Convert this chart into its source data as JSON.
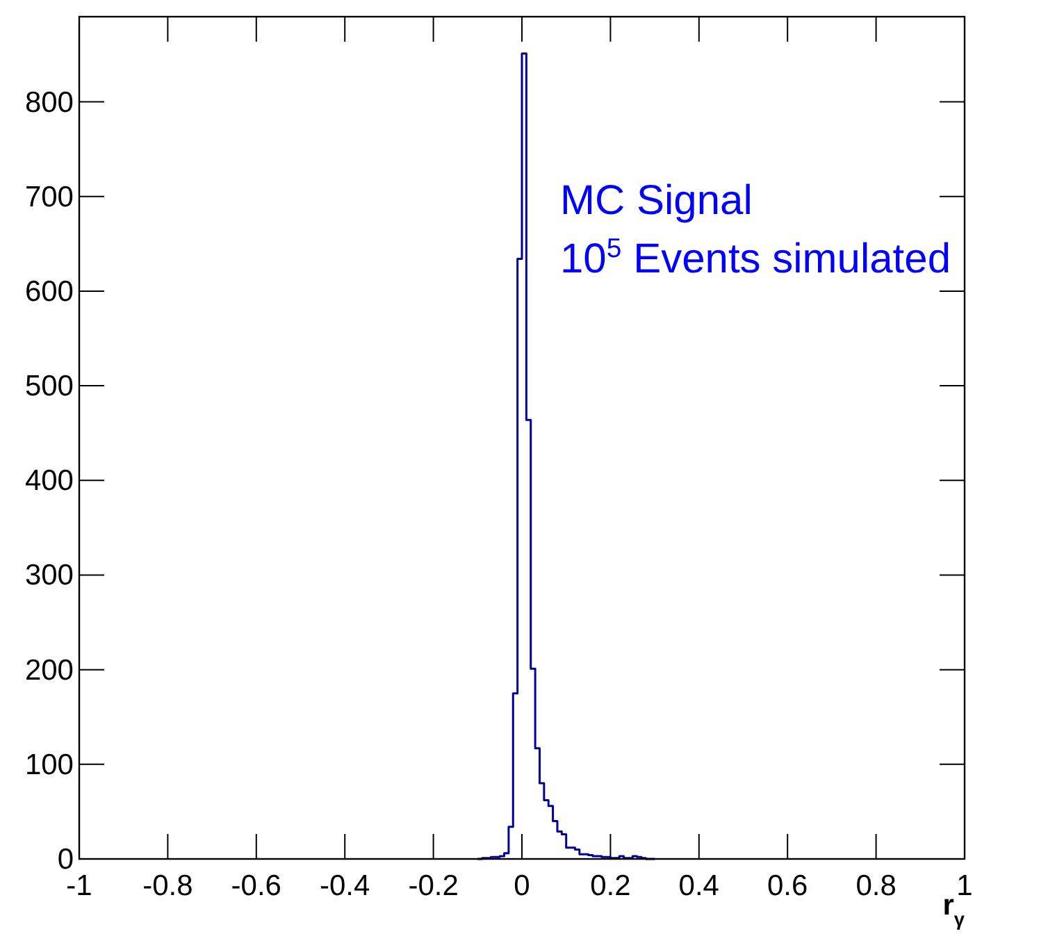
{
  "chart_data": {
    "type": "histogram",
    "xlabel": "r$_{γ}$",
    "color": "#000099",
    "bins": [
      -0.1,
      -0.09,
      -0.08,
      -0.07,
      -0.06,
      -0.05,
      -0.04,
      -0.03,
      -0.02,
      -0.01,
      0,
      0.01,
      0.02,
      0.03,
      0.04,
      0.05,
      0.06,
      0.07,
      0.08,
      0.09,
      0.1,
      0.11,
      0.12,
      0.13,
      0.14,
      0.15,
      0.16,
      0.17,
      0.18,
      0.19,
      0.2,
      0.21,
      0.22,
      0.23,
      0.24,
      0.25,
      0.26,
      0.27,
      0.28,
      0.29,
      0.3
    ],
    "values": [
      0,
      1,
      1,
      2,
      2,
      3,
      6,
      34,
      175,
      634,
      851,
      464,
      201,
      117,
      80,
      62,
      56,
      40,
      29,
      26,
      12,
      12,
      10,
      5,
      5,
      4,
      3,
      3,
      2,
      2,
      1,
      1,
      3,
      1,
      1,
      3,
      2,
      1,
      0,
      0
    ],
    "xlim": [
      -1,
      1
    ],
    "xticks": [
      -1,
      -0.8,
      -0.6,
      -0.4,
      -0.2,
      0,
      0.2,
      0.4,
      0.6,
      0.8,
      1
    ],
    "ylim": [
      0,
      890
    ],
    "yticks": [
      0,
      100,
      200,
      300,
      400,
      500,
      600,
      700,
      800
    ],
    "annotations": [
      "MC Signal",
      "10$^{5}$ Events simulated"
    ]
  }
}
